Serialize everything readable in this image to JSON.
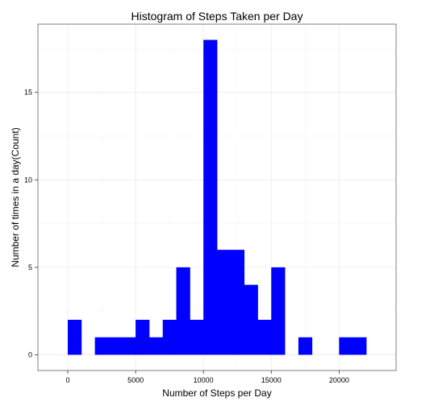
{
  "chart_data": {
    "type": "bar",
    "subtype": "histogram",
    "title": "Histogram of Steps Taken per Day",
    "xlabel": "Number of Steps per Day",
    "ylabel": "Number of times in a day(Count)",
    "bin_width": 1000,
    "bins": [
      {
        "start": 0,
        "end": 1000,
        "count": 2
      },
      {
        "start": 1000,
        "end": 2000,
        "count": 0
      },
      {
        "start": 2000,
        "end": 3000,
        "count": 1
      },
      {
        "start": 3000,
        "end": 4000,
        "count": 1
      },
      {
        "start": 4000,
        "end": 5000,
        "count": 1
      },
      {
        "start": 5000,
        "end": 6000,
        "count": 2
      },
      {
        "start": 6000,
        "end": 7000,
        "count": 1
      },
      {
        "start": 7000,
        "end": 8000,
        "count": 2
      },
      {
        "start": 8000,
        "end": 9000,
        "count": 5
      },
      {
        "start": 9000,
        "end": 10000,
        "count": 2
      },
      {
        "start": 10000,
        "end": 11000,
        "count": 18
      },
      {
        "start": 11000,
        "end": 12000,
        "count": 6
      },
      {
        "start": 12000,
        "end": 13000,
        "count": 6
      },
      {
        "start": 13000,
        "end": 14000,
        "count": 4
      },
      {
        "start": 14000,
        "end": 15000,
        "count": 2
      },
      {
        "start": 15000,
        "end": 16000,
        "count": 5
      },
      {
        "start": 16000,
        "end": 17000,
        "count": 0
      },
      {
        "start": 17000,
        "end": 18000,
        "count": 1
      },
      {
        "start": 18000,
        "end": 19000,
        "count": 0
      },
      {
        "start": 19000,
        "end": 20000,
        "count": 0
      },
      {
        "start": 20000,
        "end": 21000,
        "count": 1
      },
      {
        "start": 21000,
        "end": 22000,
        "count": 1
      }
    ],
    "xlim": [
      -2200,
      24200
    ],
    "ylim": [
      -0.9,
      18.9
    ],
    "x_ticks": [
      0,
      5000,
      10000,
      15000,
      20000
    ],
    "x_tick_labels": [
      "0",
      "5000",
      "10000",
      "15000",
      "20000"
    ],
    "y_ticks": [
      0,
      5,
      10,
      15
    ],
    "y_tick_labels": [
      "0",
      "5",
      "10",
      "15"
    ],
    "bar_color": "#0000ff",
    "grid": true,
    "legend": "none"
  }
}
